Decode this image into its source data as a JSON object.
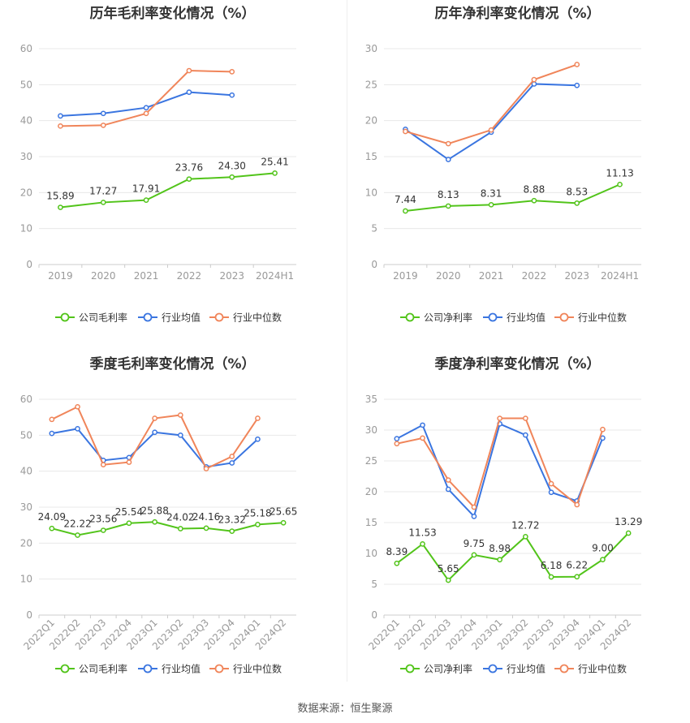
{
  "source": "数据来源：恒生聚源",
  "colors": {
    "company": "#52c41a",
    "avg": "#3a75e0",
    "median": "#f0855a",
    "axis": "#999999",
    "grid": "#e8e8e8"
  },
  "chart_data": [
    {
      "type": "line",
      "title": "历年毛利率变化情况（%）",
      "categories": [
        "2019",
        "2020",
        "2021",
        "2022",
        "2023",
        "2024H1"
      ],
      "ylim": [
        0,
        60
      ],
      "yticks": [
        0,
        10,
        20,
        30,
        40,
        50,
        60
      ],
      "rotate_labels": false,
      "series": [
        {
          "name": "公司毛利率",
          "key": "company",
          "values": [
            15.89,
            17.27,
            17.91,
            23.76,
            24.3,
            25.41
          ],
          "labels": [
            "15.89",
            "17.27",
            "17.91",
            "23.76",
            "24.30",
            "25.41"
          ]
        },
        {
          "name": "行业均值",
          "key": "avg",
          "values": [
            41.3,
            42.0,
            43.6,
            47.9,
            47.1,
            null
          ]
        },
        {
          "name": "行业中位数",
          "key": "median",
          "values": [
            38.5,
            38.7,
            42.0,
            53.9,
            53.6,
            null
          ]
        }
      ]
    },
    {
      "type": "line",
      "title": "历年净利率变化情况（%）",
      "categories": [
        "2019",
        "2020",
        "2021",
        "2022",
        "2023",
        "2024H1"
      ],
      "ylim": [
        0,
        30
      ],
      "yticks": [
        0,
        5,
        10,
        15,
        20,
        25,
        30
      ],
      "rotate_labels": false,
      "series": [
        {
          "name": "公司净利率",
          "key": "company",
          "values": [
            7.44,
            8.13,
            8.31,
            8.88,
            8.53,
            11.13
          ],
          "labels": [
            "7.44",
            "8.13",
            "8.31",
            "8.88",
            "8.53",
            "11.13"
          ]
        },
        {
          "name": "行业均值",
          "key": "avg",
          "values": [
            18.8,
            14.6,
            18.4,
            25.1,
            24.9,
            null
          ]
        },
        {
          "name": "行业中位数",
          "key": "median",
          "values": [
            18.5,
            16.8,
            18.7,
            25.7,
            27.8,
            null
          ]
        }
      ]
    },
    {
      "type": "line",
      "title": "季度毛利率变化情况（%）",
      "categories": [
        "2022Q1",
        "2022Q2",
        "2022Q3",
        "2022Q4",
        "2023Q1",
        "2023Q2",
        "2023Q3",
        "2023Q4",
        "2024Q1",
        "2024Q2"
      ],
      "ylim": [
        0,
        60
      ],
      "yticks": [
        0,
        10,
        20,
        30,
        40,
        50,
        60
      ],
      "rotate_labels": true,
      "series": [
        {
          "name": "公司毛利率",
          "key": "company",
          "values": [
            24.09,
            22.22,
            23.56,
            25.54,
            25.88,
            24.02,
            24.16,
            23.32,
            25.18,
            25.65
          ],
          "labels": [
            "24.09",
            "22.22",
            "23.56",
            "25.54",
            "25.88",
            "24.02",
            "24.16",
            "23.32",
            "25.18",
            "25.65"
          ]
        },
        {
          "name": "行业均值",
          "key": "avg",
          "values": [
            50.5,
            51.8,
            43.0,
            43.8,
            50.8,
            50.0,
            41.2,
            42.3,
            48.9,
            null
          ]
        },
        {
          "name": "行业中位数",
          "key": "median",
          "values": [
            54.4,
            57.9,
            41.8,
            42.5,
            54.7,
            55.6,
            40.7,
            44.1,
            54.7,
            null
          ]
        }
      ]
    },
    {
      "type": "line",
      "title": "季度净利率变化情况（%）",
      "categories": [
        "2022Q1",
        "2022Q2",
        "2022Q3",
        "2022Q4",
        "2023Q1",
        "2023Q2",
        "2023Q3",
        "2023Q4",
        "2024Q1",
        "2024Q2"
      ],
      "ylim": [
        0,
        35
      ],
      "yticks": [
        0,
        5,
        10,
        15,
        20,
        25,
        30,
        35
      ],
      "rotate_labels": true,
      "series": [
        {
          "name": "公司净利率",
          "key": "company",
          "values": [
            8.39,
            11.53,
            5.65,
            9.75,
            8.98,
            12.72,
            6.18,
            6.22,
            9.0,
            13.29
          ],
          "labels": [
            "8.39",
            "11.53",
            "5.65",
            "9.75",
            "8.98",
            "12.72",
            "6.18",
            "6.22",
            "9.00",
            "13.29"
          ]
        },
        {
          "name": "行业均值",
          "key": "avg",
          "values": [
            28.6,
            30.8,
            20.4,
            16.0,
            31.0,
            29.2,
            19.9,
            18.5,
            28.7,
            null
          ]
        },
        {
          "name": "行业中位数",
          "key": "median",
          "values": [
            27.8,
            28.7,
            21.9,
            17.5,
            31.9,
            31.9,
            21.3,
            17.9,
            30.1,
            null
          ]
        }
      ]
    }
  ]
}
